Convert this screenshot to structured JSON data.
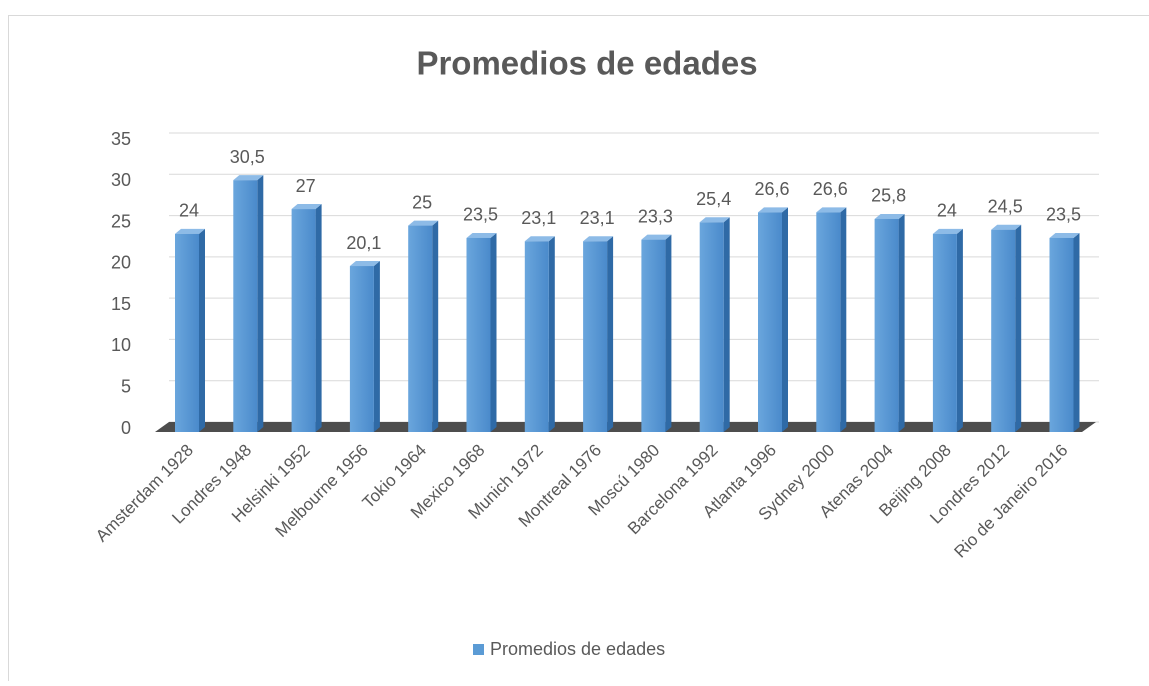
{
  "chart_data": {
    "type": "bar3d",
    "title": "Promedios de edades",
    "categories": [
      "Amsterdam 1928",
      "Londres 1948",
      "Helsinki 1952",
      "Melbourne 1956",
      "Tokio 1964",
      "Mexico 1968",
      "Munich 1972",
      "Montreal 1976",
      "Moscú 1980",
      "Barcelona 1992",
      "Atlanta 1996",
      "Sydney 2000",
      "Atenas 2004",
      "Beijing 2008",
      "Londres 2012",
      "Rio de Janeiro 2016"
    ],
    "series": [
      {
        "name": "Promedios de edades",
        "color": "#5b9bd5",
        "values": [
          24,
          30.5,
          27,
          20.1,
          25,
          23.5,
          23.1,
          23.1,
          23.3,
          25.4,
          26.6,
          26.6,
          25.8,
          24,
          24.5,
          23.5
        ],
        "value_labels": [
          "24",
          "30,5",
          "27",
          "20,1",
          "25",
          "23,5",
          "23,1",
          "23,1",
          "23,3",
          "25,4",
          "26,6",
          "26,6",
          "25,8",
          "24",
          "24,5",
          "23,5"
        ]
      }
    ],
    "ylim": [
      0,
      35
    ],
    "yticks": [
      0,
      5,
      10,
      15,
      20,
      25,
      30,
      35
    ],
    "grid": true,
    "legend": "bottom"
  }
}
